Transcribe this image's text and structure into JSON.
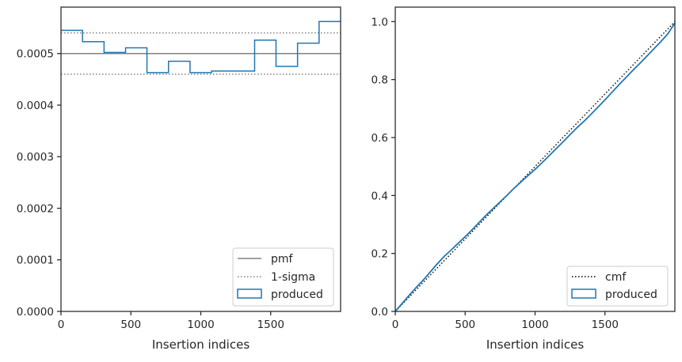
{
  "chart_data": [
    {
      "type": "histogram-step",
      "xlabel": "Insertion indices",
      "ylabel": "",
      "xlim": [
        0,
        2000
      ],
      "ylim": [
        0,
        0.00059
      ],
      "xticks": [
        0,
        500,
        1000,
        1500
      ],
      "xtick_labels": [
        "0",
        "500",
        "1000",
        "1500"
      ],
      "yticks": [
        0,
        0.0001,
        0.0002,
        0.0003,
        0.0004,
        0.0005
      ],
      "ytick_labels": [
        "0.0000",
        "0.0001",
        "0.0002",
        "0.0003",
        "0.0004",
        "0.0005"
      ],
      "legend": {
        "placement": "lower-right",
        "entries": [
          {
            "label": "pmf",
            "style": "solid",
            "color": "#808080"
          },
          {
            "label": "1-sigma",
            "style": "dotted",
            "color": "#808080"
          },
          {
            "label": "produced",
            "style": "patch",
            "color": "#1f77b4"
          }
        ]
      },
      "pmf": 0.0005,
      "sigma_upper": 0.00054,
      "sigma_lower": 0.00046,
      "bin_edges": [
        0,
        154,
        308,
        462,
        615,
        769,
        923,
        1077,
        1231,
        1385,
        1538,
        1692,
        1846,
        2000
      ],
      "produced": [
        0.000545,
        0.000523,
        0.000502,
        0.000511,
        0.000463,
        0.000485,
        0.000463,
        0.000466,
        0.000466,
        0.000526,
        0.000475,
        0.00052,
        0.000562
      ],
      "grid": false
    },
    {
      "type": "line",
      "xlabel": "Insertion indices",
      "ylabel": "",
      "xlim": [
        0,
        2000
      ],
      "ylim": [
        0,
        1.05
      ],
      "xticks": [
        0,
        500,
        1000,
        1500
      ],
      "xtick_labels": [
        "0",
        "500",
        "1000",
        "1500"
      ],
      "yticks": [
        0,
        0.2,
        0.4,
        0.6,
        0.8,
        1.0
      ],
      "ytick_labels": [
        "0.0",
        "0.2",
        "0.4",
        "0.6",
        "0.8",
        "1.0"
      ],
      "legend": {
        "placement": "lower-right",
        "entries": [
          {
            "label": "cmf",
            "style": "dotted",
            "color": "#000000"
          },
          {
            "label": "produced",
            "style": "patch",
            "color": "#1f77b4"
          }
        ]
      },
      "cmf": {
        "x": [
          0,
          2000
        ],
        "y": [
          0,
          1.0
        ]
      },
      "produced": {
        "x": [
          0,
          50,
          100,
          150,
          200,
          250,
          300,
          350,
          400,
          450,
          500,
          550,
          600,
          650,
          700,
          750,
          800,
          850,
          900,
          950,
          1000,
          1050,
          1100,
          1150,
          1200,
          1250,
          1300,
          1350,
          1400,
          1450,
          1500,
          1550,
          1600,
          1650,
          1700,
          1750,
          1800,
          1850,
          1900,
          1950,
          2000
        ],
        "y": [
          0,
          0.028,
          0.056,
          0.083,
          0.108,
          0.136,
          0.164,
          0.19,
          0.212,
          0.235,
          0.258,
          0.282,
          0.307,
          0.332,
          0.355,
          0.378,
          0.401,
          0.425,
          0.447,
          0.469,
          0.49,
          0.513,
          0.537,
          0.561,
          0.585,
          0.61,
          0.634,
          0.656,
          0.68,
          0.705,
          0.73,
          0.756,
          0.782,
          0.807,
          0.832,
          0.856,
          0.881,
          0.906,
          0.931,
          0.958,
          0.995
        ]
      },
      "grid": false
    }
  ]
}
